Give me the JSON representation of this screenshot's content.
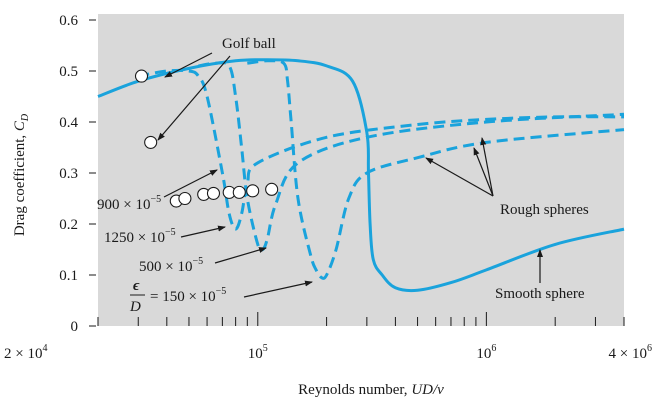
{
  "chart_data": {
    "type": "line",
    "xlabel": "Reynolds number, UD/ν",
    "ylabel": "Drag coefficient, C_D",
    "xscale": "log",
    "xlim": [
      20000,
      4000000
    ],
    "ylim": [
      0,
      0.6
    ],
    "yticks": [
      "0",
      "0.1",
      "0.2",
      "0.3",
      "0.4",
      "0.5",
      "0.6"
    ],
    "xtick_labels": [
      {
        "base": "2 × 10",
        "exp": "4"
      },
      {
        "base": "10",
        "exp": "5"
      },
      {
        "base": "10",
        "exp": "6"
      },
      {
        "base": "4 × 10",
        "exp": "6"
      }
    ],
    "background_color": "#d9d9d9",
    "series_color": "#1aa3dc",
    "series": [
      {
        "style": "solid",
        "x": [
          20000,
          30000,
          50000,
          80000,
          110000,
          150000,
          200000,
          260000,
          300000,
          305000,
          310000,
          320000,
          350000,
          400000,
          500000,
          700000,
          1000000,
          2000000,
          4000000
        ],
        "y": [
          0.45,
          0.48,
          0.505,
          0.52,
          0.522,
          0.52,
          0.51,
          0.48,
          0.38,
          0.3,
          0.2,
          0.13,
          0.1,
          0.075,
          0.07,
          0.085,
          0.11,
          0.16,
          0.19
        ]
      },
      {
        "style": "dashed",
        "x": [
          30000,
          40000,
          50000,
          55000,
          60000,
          70000,
          75000,
          80000,
          85000,
          90000,
          100000,
          200000,
          500000,
          1000000,
          2000000,
          4000000
        ],
        "y": [
          0.49,
          0.5,
          0.5,
          0.49,
          0.45,
          0.3,
          0.22,
          0.19,
          0.22,
          0.28,
          0.32,
          0.37,
          0.395,
          0.405,
          0.41,
          0.41
        ]
      },
      {
        "style": "dashed",
        "x": [
          55000,
          65000,
          75000,
          80000,
          85000,
          90000,
          100000,
          105000,
          110000,
          120000,
          150000,
          300000,
          1000000,
          4000000
        ],
        "y": [
          0.51,
          0.515,
          0.51,
          0.45,
          0.35,
          0.25,
          0.16,
          0.15,
          0.17,
          0.24,
          0.32,
          0.37,
          0.4,
          0.415
        ],
        "label": "500 × 10⁻⁵"
      },
      {
        "style": "dashed",
        "x": [
          90000,
          110000,
          130000,
          135000,
          140000,
          150000,
          170000,
          180000,
          190000,
          200000,
          220000,
          250000,
          300000,
          500000,
          1000000,
          4000000
        ],
        "y": [
          0.515,
          0.52,
          0.515,
          0.48,
          0.4,
          0.25,
          0.14,
          0.11,
          0.095,
          0.1,
          0.15,
          0.25,
          0.3,
          0.33,
          0.36,
          0.385
        ]
      }
    ],
    "golf_ball_points": {
      "x": [
        31000,
        34000,
        44000,
        48000,
        58000,
        64000,
        75000,
        83000,
        95000,
        115000
      ],
      "y": [
        0.49,
        0.36,
        0.245,
        0.25,
        0.258,
        0.26,
        0.262,
        0.262,
        0.265,
        0.268
      ]
    }
  },
  "annotations": {
    "golf_ball": "Golf ball",
    "rough_spheres": "Rough spheres",
    "smooth_sphere": "Smooth sphere",
    "eps_900": {
      "base": "900 × 10",
      "exp": "−5"
    },
    "eps_1250": {
      "base": "1250 × 10",
      "exp": "−5"
    },
    "eps_500": {
      "base": "500 × 10",
      "exp": "−5"
    },
    "eps_150": {
      "eps": "ϵ",
      "d": "D",
      "base": "= 150 × 10",
      "exp": "−5"
    }
  },
  "axis_titles": {
    "ylabel_main": "Drag coefficient, ",
    "ylabel_c": "C",
    "ylabel_sub": "D",
    "xlabel_main": "Reynolds number, ",
    "xlabel_ud": "UD",
    "xlabel_nu": "/ν"
  }
}
